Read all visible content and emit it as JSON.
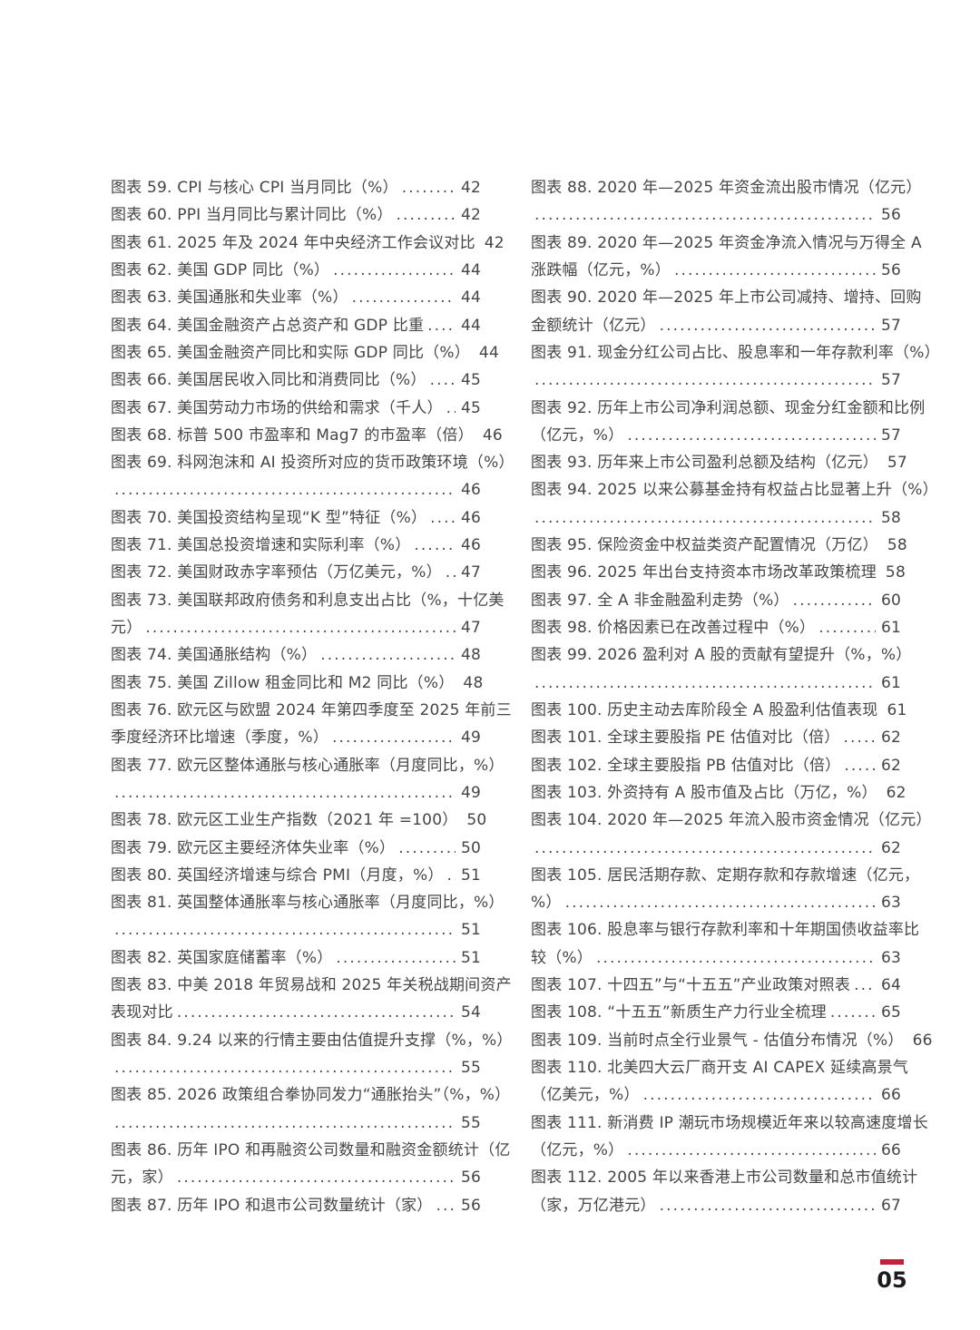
{
  "page": {
    "background_color": "#ffffff",
    "text_color": "#454545",
    "accent_color": "#c2203d",
    "page_number": "05"
  },
  "toc": {
    "columns": [
      {
        "entries": [
          {
            "lines": [
              "图表 59. CPI 与核心 CPI 当月同比（%）"
            ],
            "page": "42"
          },
          {
            "lines": [
              "图表 60. PPI 当月同比与累计同比（%）"
            ],
            "page": "42"
          },
          {
            "lines": [
              "图表 61. 2025 年及 2024 年中央经济工作会议对比"
            ],
            "page": "42"
          },
          {
            "lines": [
              "图表 62. 美国 GDP 同比（%）"
            ],
            "page": "44"
          },
          {
            "lines": [
              "图表 63. 美国通胀和失业率（%）"
            ],
            "page": "44"
          },
          {
            "lines": [
              "图表 64. 美国金融资产占总资产和 GDP 比重"
            ],
            "page": "44"
          },
          {
            "lines": [
              "图表 65. 美国金融资产同比和实际 GDP 同比（%）"
            ],
            "page": "44"
          },
          {
            "lines": [
              "图表 66. 美国居民收入同比和消费同比（%）"
            ],
            "page": "45"
          },
          {
            "lines": [
              "图表 67. 美国劳动力市场的供给和需求（千人）"
            ],
            "page": "45"
          },
          {
            "lines": [
              "图表 68. 标普 500 市盈率和 Mag7 的市盈率（倍）"
            ],
            "page": "46"
          },
          {
            "lines": [
              "图表 69. 科网泡沫和 AI 投资所对应的货币政策环境（%）",
              ""
            ],
            "page": "46"
          },
          {
            "lines": [
              "图表 70. 美国投资结构呈现“K 型”特征（%）"
            ],
            "page": "46"
          },
          {
            "lines": [
              "图表 71. 美国总投资增速和实际利率（%）"
            ],
            "page": "46"
          },
          {
            "lines": [
              "图表 72. 美国财政赤字率预估（万亿美元，%）"
            ],
            "page": "47"
          },
          {
            "lines": [
              "图表 73. 美国联邦政府债务和利息支出占比（%，十亿美",
              "元）"
            ],
            "page": "47"
          },
          {
            "lines": [
              "图表 74. 美国通胀结构（%）"
            ],
            "page": "48"
          },
          {
            "lines": [
              "图表 75. 美国 Zillow 租金同比和 M2 同比（%）"
            ],
            "page": "48"
          },
          {
            "lines": [
              "图表 76. 欧元区与欧盟 2024 年第四季度至 2025 年前三",
              "季度经济环比增速（季度，%）"
            ],
            "page": "49"
          },
          {
            "lines": [
              "图表 77. 欧元区整体通胀与核心通胀率（月度同比，%）",
              ""
            ],
            "page": "49"
          },
          {
            "lines": [
              "图表 78. 欧元区工业生产指数（2021 年 =100）"
            ],
            "page": "50"
          },
          {
            "lines": [
              "图表 79. 欧元区主要经济体失业率（%）"
            ],
            "page": "50"
          },
          {
            "lines": [
              "图表 80. 英国经济增速与综合 PMI（月度，%）"
            ],
            "page": "51"
          },
          {
            "lines": [
              "图表 81. 英国整体通胀率与核心通胀率（月度同比，%）",
              ""
            ],
            "page": "51"
          },
          {
            "lines": [
              "图表 82. 英国家庭储蓄率（%）"
            ],
            "page": "51"
          },
          {
            "lines": [
              "图表 83. 中美 2018 年贸易战和 2025 年关税战期间资产",
              "表现对比"
            ],
            "page": "54"
          },
          {
            "lines": [
              "图表 84. 9.24 以来的行情主要由估值提升支撑（%，%）",
              ""
            ],
            "page": "55"
          },
          {
            "lines": [
              "图表 85. 2026 政策组合拳协同发力“通胀抬头”（%，%）",
              ""
            ],
            "page": "55"
          },
          {
            "lines": [
              "图表 86. 历年 IPO 和再融资公司数量和融资金额统计（亿",
              "元，家）"
            ],
            "page": "56"
          },
          {
            "lines": [
              "图表 87. 历年 IPO 和退市公司数量统计（家）"
            ],
            "page": "56"
          }
        ]
      },
      {
        "entries": [
          {
            "lines": [
              "图表 88. 2020 年—2025 年资金流出股市情况（亿元）",
              ""
            ],
            "page": "56"
          },
          {
            "lines": [
              "图表 89. 2020 年—2025 年资金净流入情况与万得全 A",
              "涨跌幅（亿元，%）"
            ],
            "page": "56"
          },
          {
            "lines": [
              "图表 90. 2020 年—2025 年上市公司减持、增持、回购",
              "金额统计（亿元）"
            ],
            "page": "57"
          },
          {
            "lines": [
              "图表 91. 现金分红公司占比、股息率和一年存款利率（%）",
              ""
            ],
            "page": "57"
          },
          {
            "lines": [
              "图表 92. 历年上市公司净利润总额、现金分红金额和比例",
              "（亿元，%）"
            ],
            "page": "57"
          },
          {
            "lines": [
              "图表 93. 历年来上市公司盈利总额及结构（亿元）"
            ],
            "page": "57"
          },
          {
            "lines": [
              "图表 94. 2025 以来公募基金持有权益占比显著上升（%）",
              ""
            ],
            "page": "58"
          },
          {
            "lines": [
              "图表 95. 保险资金中权益类资产配置情况（万亿）"
            ],
            "page": "58"
          },
          {
            "lines": [
              "图表 96. 2025 年出台支持资本市场改革政策梳理"
            ],
            "page": "58"
          },
          {
            "lines": [
              "图表 97. 全 A 非金融盈利走势（%）"
            ],
            "page": "60"
          },
          {
            "lines": [
              "图表 98. 价格因素已在改善过程中（%）"
            ],
            "page": "61"
          },
          {
            "lines": [
              "图表 99. 2026 盈利对 A 股的贡献有望提升（%，%）",
              ""
            ],
            "page": "61"
          },
          {
            "lines": [
              "图表 100. 历史主动去库阶段全 A 股盈利估值表现"
            ],
            "page": "61"
          },
          {
            "lines": [
              "图表 101. 全球主要股指 PE 估值对比（倍）"
            ],
            "page": "62"
          },
          {
            "lines": [
              "图表 102. 全球主要股指 PB 估值对比（倍）"
            ],
            "page": "62"
          },
          {
            "lines": [
              "图表 103. 外资持有 A 股市值及占比（万亿，%）"
            ],
            "page": "62"
          },
          {
            "lines": [
              "图表 104. 2020 年—2025 年流入股市资金情况（亿元）",
              ""
            ],
            "page": "62"
          },
          {
            "lines": [
              "图表 105. 居民活期存款、定期存款和存款增速（亿元，",
              "%）"
            ],
            "page": "63"
          },
          {
            "lines": [
              "图表 106. 股息率与银行存款利率和十年期国债收益率比",
              "较（%）"
            ],
            "page": "63"
          },
          {
            "lines": [
              "图表 107. 十四五”与“十五五”产业政策对照表"
            ],
            "page": "64"
          },
          {
            "lines": [
              "图表 108. “十五五”新质生产力行业全梳理"
            ],
            "page": "65"
          },
          {
            "lines": [
              "图表 109. 当前时点全行业景气 - 估值分布情况（%）"
            ],
            "page": "66"
          },
          {
            "lines": [
              "图表 110. 北美四大云厂商开支 AI CAPEX 延续高景气",
              "（亿美元，%）"
            ],
            "page": "66"
          },
          {
            "lines": [
              "图表 111. 新消费 IP 潮玩市场规模近年来以较高速度增长",
              "（亿元，%）"
            ],
            "page": "66"
          },
          {
            "lines": [
              "图表 112. 2005 年以来香港上市公司数量和总市值统计",
              "（家，万亿港元）"
            ],
            "page": "67"
          }
        ]
      }
    ]
  }
}
